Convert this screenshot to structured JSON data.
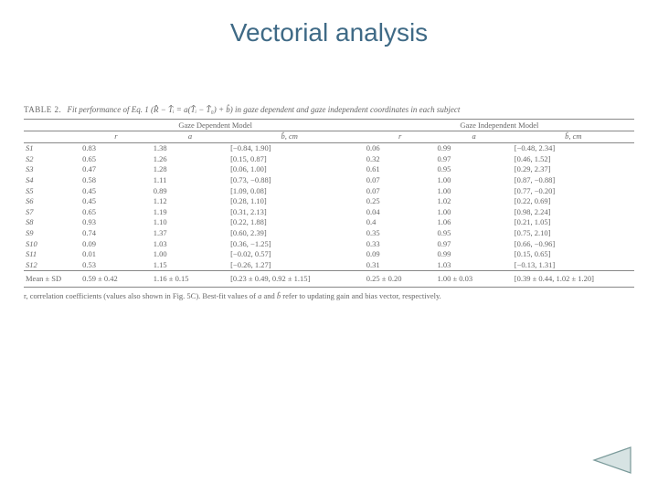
{
  "colors": {
    "title": "#3f6a86",
    "text": "#666666",
    "rule": "#888888",
    "back_fill": "#d7e3e3",
    "back_stroke": "#7a9a9a",
    "background": "#ffffff"
  },
  "title": "Vectorial analysis",
  "table": {
    "label": "TABLE 2.",
    "caption": "Fit performance of Eq. 1 (R̂ − T̂ᵢ = a(T̂ᵢ − T̂₀) + b̂) in gaze dependent and gaze independent coordinates in each subject",
    "group_headers": [
      "Gaze Dependent Model",
      "Gaze Independent Model"
    ],
    "col_headers": [
      "r",
      "a",
      "b̂, cm",
      "r",
      "a",
      "b̂, cm"
    ],
    "rows": [
      {
        "id": "S1",
        "r1": "0.83",
        "a1": "1.38",
        "b1": "[−0.84, 1.90]",
        "r2": "0.06",
        "a2": "0.99",
        "b2": "[−0.48, 2.34]"
      },
      {
        "id": "S2",
        "r1": "0.65",
        "a1": "1.26",
        "b1": "[0.15, 0.87]",
        "r2": "0.32",
        "a2": "0.97",
        "b2": "[0.46, 1.52]"
      },
      {
        "id": "S3",
        "r1": "0.47",
        "a1": "1.28",
        "b1": "[0.06, 1.00]",
        "r2": "0.61",
        "a2": "0.95",
        "b2": "[0.29, 2.37]"
      },
      {
        "id": "S4",
        "r1": "0.58",
        "a1": "1.11",
        "b1": "[0.73, −0.88]",
        "r2": "0.07",
        "a2": "1.00",
        "b2": "[0.87, −0.88]"
      },
      {
        "id": "S5",
        "r1": "0.45",
        "a1": "0.89",
        "b1": "[1.09, 0.08]",
        "r2": "0.07",
        "a2": "1.00",
        "b2": "[0.77, −0.20]"
      },
      {
        "id": "S6",
        "r1": "0.45",
        "a1": "1.12",
        "b1": "[0.28, 1.10]",
        "r2": "0.25",
        "a2": "1.02",
        "b2": "[0.22, 0.69]"
      },
      {
        "id": "S7",
        "r1": "0.65",
        "a1": "1.19",
        "b1": "[0.31, 2.13]",
        "r2": "0.04",
        "a2": "1.00",
        "b2": "[0.98, 2.24]"
      },
      {
        "id": "S8",
        "r1": "0.93",
        "a1": "1.10",
        "b1": "[0.22, 1.88]",
        "r2": "0.4",
        "a2": "1.06",
        "b2": "[0.21, 1.05]"
      },
      {
        "id": "S9",
        "r1": "0.74",
        "a1": "1.37",
        "b1": "[0.60, 2.39]",
        "r2": "0.35",
        "a2": "0.95",
        "b2": "[0.75, 2.10]"
      },
      {
        "id": "S10",
        "r1": "0.09",
        "a1": "1.03",
        "b1": "[0.36, −1.25]",
        "r2": "0.33",
        "a2": "0.97",
        "b2": "[0.66, −0.96]"
      },
      {
        "id": "S11",
        "r1": "0.01",
        "a1": "1.00",
        "b1": "[−0.02, 0.57]",
        "r2": "0.09",
        "a2": "0.99",
        "b2": "[0.15, 0.65]"
      },
      {
        "id": "S12",
        "r1": "0.53",
        "a1": "1.15",
        "b1": "[−0.26, 1.27]",
        "r2": "0.31",
        "a2": "1.03",
        "b2": "[−0.13, 1.31]"
      }
    ],
    "mean_label": "Mean ± SD",
    "mean": {
      "r1": "0.59 ± 0.42",
      "a1": "1.16 ± 0.15",
      "b1": "[0.23 ± 0.49, 0.92 ± 1.15]",
      "r2": "0.25 ± 0.20",
      "a2": "1.00 ± 0.03",
      "b2": "[0.39 ± 0.44, 1.02 ± 1.20]"
    },
    "footnote_prefix": "r, correlation coefficients (values also shown in Fig. 5C). Best-fit values of ",
    "footnote_mid": " and ",
    "footnote_a": "a",
    "footnote_b": "b̂",
    "footnote_suffix": " refer to updating gain and bias vector, respectively."
  }
}
